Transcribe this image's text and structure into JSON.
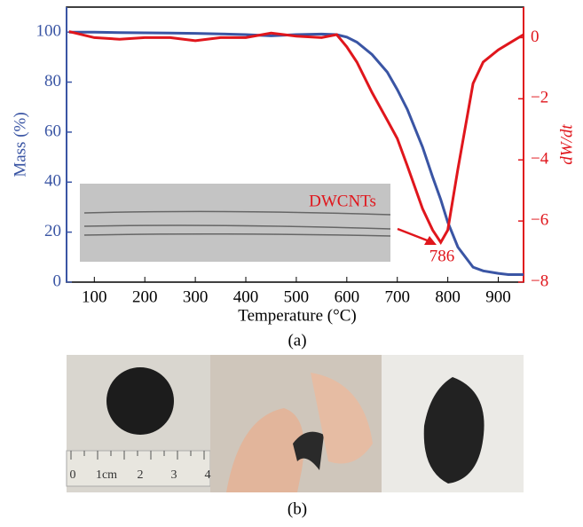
{
  "chart_data": {
    "type": "line",
    "x": [
      50,
      100,
      150,
      200,
      250,
      300,
      350,
      400,
      450,
      500,
      550,
      580,
      600,
      620,
      650,
      680,
      700,
      720,
      750,
      770,
      786,
      800,
      820,
      850,
      870,
      900,
      920,
      950
    ],
    "series": [
      {
        "color": "#3a55a4",
        "values": [
          100,
          100,
          99.8,
          99.7,
          99.6,
          99.5,
          99.3,
          99,
          98.5,
          99,
          99.2,
          99,
          98,
          96,
          91,
          84,
          77,
          69,
          54,
          42,
          33,
          24,
          14,
          6,
          4.5,
          3.5,
          3,
          3
        ]
      },
      {
        "color": "#e0161c",
        "axis": "y2",
        "values": [
          0.2,
          0,
          -0.05,
          0,
          0,
          -0.1,
          0,
          0,
          0.15,
          0.05,
          0,
          0.1,
          -0.3,
          -0.8,
          -1.8,
          -2.7,
          -3.3,
          -4.2,
          -5.6,
          -6.3,
          -6.7,
          -6.3,
          -4.3,
          -1.5,
          -0.8,
          -0.4,
          -0.2,
          0.1
        ]
      }
    ],
    "xlim": [
      45,
      950
    ],
    "xticks": [
      100,
      200,
      300,
      400,
      500,
      600,
      700,
      800,
      900
    ],
    "ylim": [
      0,
      110
    ],
    "yticks": [
      0,
      20,
      40,
      60,
      80,
      100
    ],
    "y2lim": [
      -8,
      1
    ],
    "y2ticks": [
      0,
      {
        "value": -2,
        "label": "−2"
      },
      {
        "value": -4,
        "label": "−4"
      },
      {
        "value": -6,
        "label": "−6"
      },
      {
        "value": -8,
        "label": "−8"
      }
    ],
    "xlabel": "Temperature (°C)",
    "ylabel": "Mass (%)",
    "y2label": "dW/dt",
    "annotations": [
      "DWCNTs",
      "786"
    ],
    "panel_label": "(a)"
  },
  "panel_b": {
    "label": "(b)",
    "ruler_labels": [
      "0",
      "1cm",
      "2",
      "3",
      "4"
    ]
  }
}
